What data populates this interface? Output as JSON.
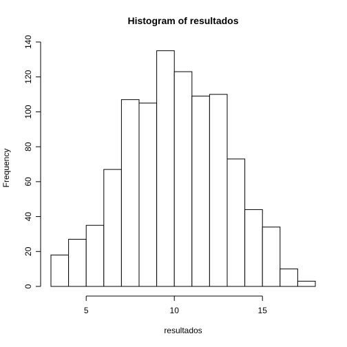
{
  "chart_data": {
    "type": "bar",
    "subtype": "histogram",
    "title": "Histogram of resultados",
    "xlabel": "resultados",
    "ylabel": "Frequency",
    "bins": [
      {
        "x0": 3,
        "x1": 4,
        "count": 18
      },
      {
        "x0": 4,
        "x1": 5,
        "count": 27
      },
      {
        "x0": 5,
        "x1": 6,
        "count": 35
      },
      {
        "x0": 6,
        "x1": 7,
        "count": 67
      },
      {
        "x0": 7,
        "x1": 8,
        "count": 107
      },
      {
        "x0": 8,
        "x1": 9,
        "count": 105
      },
      {
        "x0": 9,
        "x1": 10,
        "count": 135
      },
      {
        "x0": 10,
        "x1": 11,
        "count": 123
      },
      {
        "x0": 11,
        "x1": 12,
        "count": 109
      },
      {
        "x0": 12,
        "x1": 13,
        "count": 110
      },
      {
        "x0": 13,
        "x1": 14,
        "count": 73
      },
      {
        "x0": 14,
        "x1": 15,
        "count": 44
      },
      {
        "x0": 15,
        "x1": 16,
        "count": 34
      },
      {
        "x0": 16,
        "x1": 17,
        "count": 10
      },
      {
        "x0": 17,
        "x1": 18,
        "count": 3
      }
    ],
    "xticks": [
      "5",
      "10",
      "15"
    ],
    "xtick_values": [
      5,
      10,
      15
    ],
    "yticks": [
      "0",
      "20",
      "40",
      "60",
      "80",
      "100",
      "120",
      "140"
    ],
    "ytick_values": [
      0,
      20,
      40,
      60,
      80,
      100,
      120,
      140
    ],
    "xlim": [
      3,
      18
    ],
    "ylim": [
      0,
      140
    ],
    "grid": false,
    "legend": "none"
  }
}
